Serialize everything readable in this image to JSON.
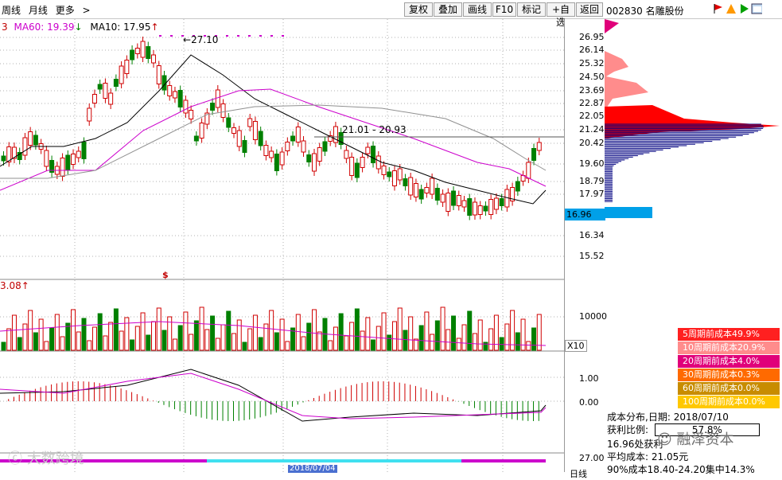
{
  "toolbar": {
    "left_items": [
      "周线",
      "月线",
      "更多",
      ">"
    ],
    "buttons": [
      "复权",
      "叠加",
      "画线",
      "F10",
      "标记",
      "+自选",
      "返回"
    ]
  },
  "stock": {
    "code": "002830",
    "name": "名雕股份"
  },
  "legend": {
    "prefix": "3",
    "ma60": "MA60: 19.39",
    "ma60_arrow": "↓",
    "ma10": "MA10: 17.95",
    "ma10_arrow": "↑"
  },
  "annotations": {
    "high": "27.10",
    "gap": "21.01 - 20.93",
    "dollar": "$",
    "vol_label": "3.08",
    "x10": "X10"
  },
  "price_axis": [
    "26.95",
    "26.14",
    "25.32",
    "24.50",
    "23.69",
    "22.87",
    "22.05",
    "21.24",
    "20.42",
    "19.60",
    "18.79",
    "17.97",
    "16.34",
    "15.52"
  ],
  "current_price": "16.96",
  "vol_axis": "10000",
  "macd_axis": [
    "1.00",
    "0.00"
  ],
  "bottom_axis": "27.00",
  "bottom_date": "2018/07/04",
  "bottom_right": "日线",
  "cost_legend": [
    {
      "label": "5周期前成本49.9%",
      "color": "#ff2020"
    },
    {
      "label": "10周期前成本20.9%",
      "color": "#ff8c8c"
    },
    {
      "label": "20周期前成本4.0%",
      "color": "#e0007a"
    },
    {
      "label": "30周期前成本0.3%",
      "color": "#ff6a00"
    },
    {
      "label": "60周期前成本0.0%",
      "color": "#c88c00"
    },
    {
      "label": "100周期前成本0.0%",
      "color": "#ffc800"
    }
  ],
  "cost_info": {
    "title": "成本分布,日期:",
    "date": "2018/07/10",
    "profit_label": "获利比例:",
    "profit_value": "57.8%",
    "cost_at_label": "16.96处获利",
    "avg_label": "平均成本:",
    "avg_value": "21.05元",
    "range_text": "90%成本18.40-24.20集中14.3%"
  },
  "watermarks": {
    "left": "大数跨境",
    "right": "融泽资本"
  },
  "colors": {
    "up": "#d00000",
    "down": "#008000",
    "ma_pink": "#cc00cc",
    "ma_black": "#000000",
    "ma_gray": "#909090",
    "cost_red": "#ff0000",
    "cost_blue": "#000080"
  }
}
